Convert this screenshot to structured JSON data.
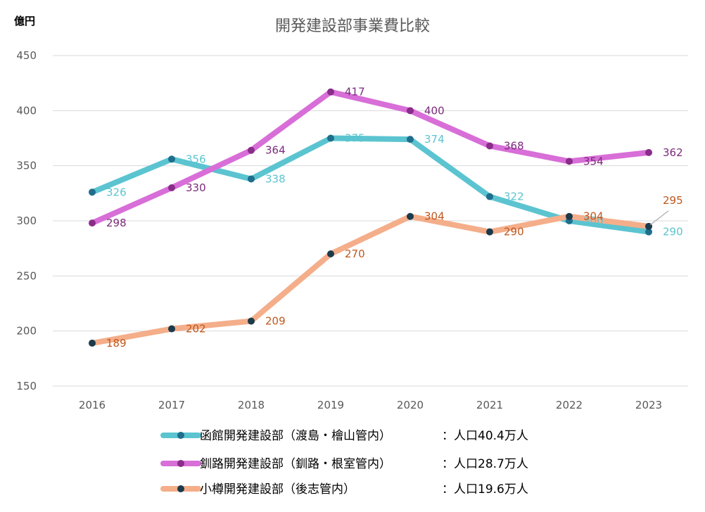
{
  "chart_data": {
    "type": "line",
    "title": "開発建設部事業費比較",
    "ylabel": "億円",
    "xlabel": "",
    "categories": [
      "2016",
      "2017",
      "2018",
      "2019",
      "2020",
      "2021",
      "2022",
      "2023"
    ],
    "ylim": [
      150,
      450
    ],
    "yticks": [
      150,
      200,
      250,
      300,
      350,
      400,
      450
    ],
    "grid": true,
    "legend_position": "bottom",
    "series": [
      {
        "name": "函館開発建設部（渡島・檜山管内）",
        "population": "：人口40.4万人",
        "values": [
          326,
          356,
          338,
          375,
          374,
          322,
          300,
          290
        ],
        "labels": [
          "326",
          "356",
          "338",
          "375",
          "374",
          "322",
          "300",
          "290"
        ],
        "line_color": "#5BC4D0",
        "label_color": "#5BC4D0",
        "marker_color": "#1F6E8C"
      },
      {
        "name": "釧路開発建設部（釧路・根室管内）",
        "population": "：人口28.7万人",
        "values": [
          298,
          330,
          364,
          417,
          400,
          368,
          354,
          362
        ],
        "labels": [
          "298",
          "330",
          "364",
          "417",
          "400",
          "368",
          "354",
          "362"
        ],
        "line_color": "#D86ED8",
        "label_color": "#7B2A7B",
        "marker_color": "#8A2C8A"
      },
      {
        "name": "小樽開発建設部（後志管内）",
        "population": "：人口19.6万人",
        "values": [
          189,
          202,
          209,
          270,
          304,
          290,
          304,
          295
        ],
        "labels": [
          "189",
          "202",
          "209",
          "270",
          "304",
          "290",
          "304",
          "295"
        ],
        "line_color": "#F4AE8A",
        "label_color": "#C0571E",
        "marker_color": "#1B3A4B"
      }
    ]
  }
}
